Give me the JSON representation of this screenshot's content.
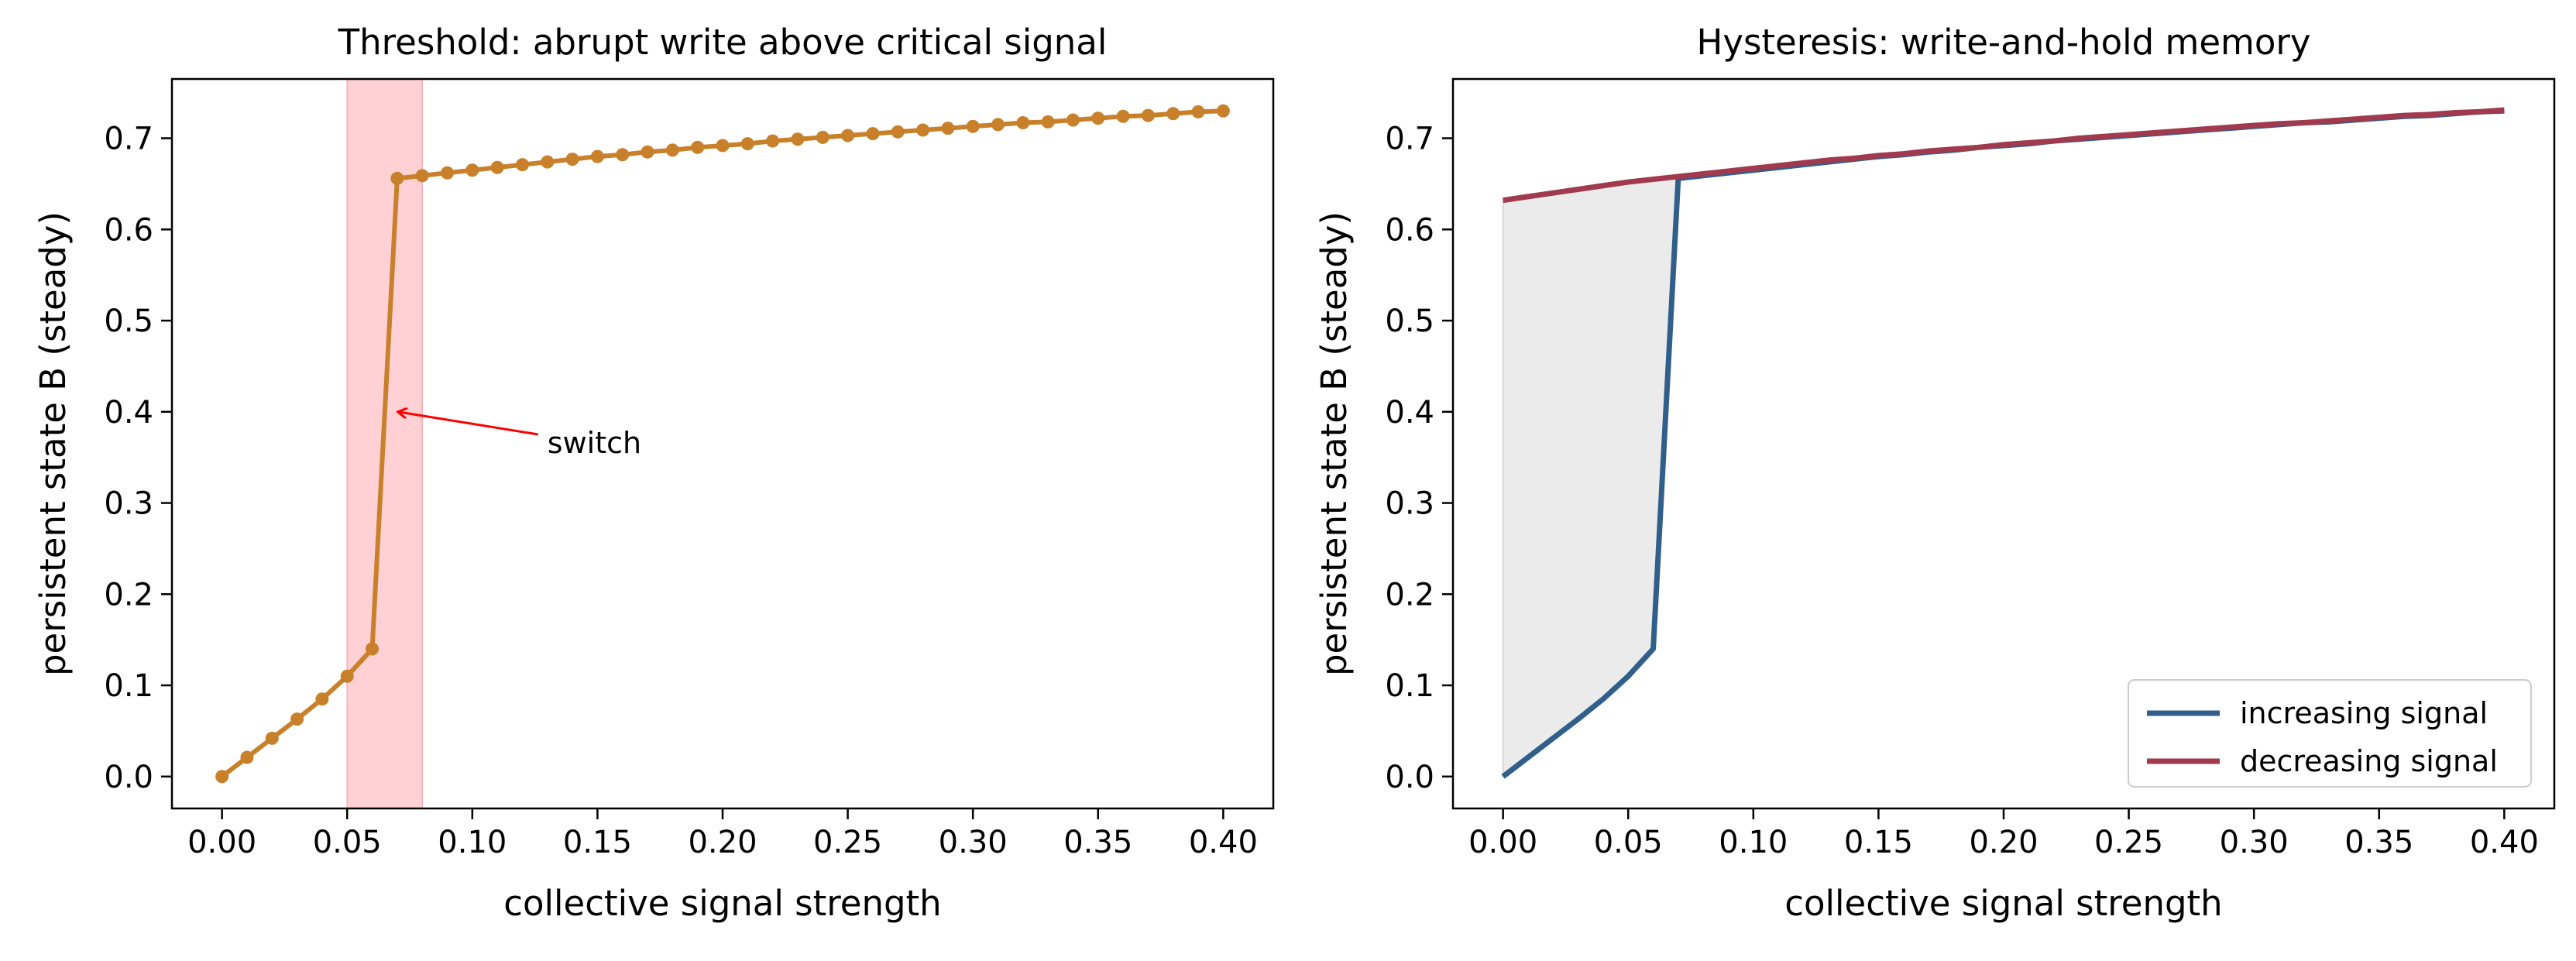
{
  "chart_data": [
    {
      "type": "line",
      "title": "Threshold: abrupt write above critical signal",
      "xlabel": "collective signal strength",
      "ylabel": "persistent state B (steady)",
      "xlim": [
        -0.02,
        0.42
      ],
      "ylim": [
        -0.035,
        0.765
      ],
      "xticks": [
        "0.00",
        "0.05",
        "0.10",
        "0.15",
        "0.20",
        "0.25",
        "0.30",
        "0.35",
        "0.40"
      ],
      "yticks": [
        "0.0",
        "0.1",
        "0.2",
        "0.3",
        "0.4",
        "0.5",
        "0.6",
        "0.7"
      ],
      "grid": false,
      "markers": true,
      "colors": {
        "line": "#c8802a",
        "band": "#ff9aa2",
        "arrow": "#ff0000"
      },
      "highlight_band": [
        0.05,
        0.08
      ],
      "annotation": {
        "text": "switch",
        "point": [
          0.069,
          0.4
        ],
        "text_pos": [
          0.13,
          0.365
        ]
      },
      "series": [
        {
          "x": [
            0.0,
            0.01,
            0.02,
            0.03,
            0.04,
            0.05,
            0.06,
            0.07,
            0.08,
            0.09,
            0.1,
            0.11,
            0.12,
            0.13,
            0.14,
            0.15,
            0.16,
            0.17,
            0.18,
            0.19,
            0.2,
            0.21,
            0.22,
            0.23,
            0.24,
            0.25,
            0.26,
            0.27,
            0.28,
            0.29,
            0.3,
            0.31,
            0.32,
            0.33,
            0.34,
            0.35,
            0.36,
            0.37,
            0.38,
            0.39,
            0.4
          ],
          "y": [
            0.0,
            0.021,
            0.042,
            0.063,
            0.085,
            0.11,
            0.14,
            0.656,
            0.659,
            0.662,
            0.665,
            0.668,
            0.671,
            0.674,
            0.677,
            0.68,
            0.682,
            0.685,
            0.687,
            0.69,
            0.692,
            0.694,
            0.697,
            0.699,
            0.701,
            0.703,
            0.705,
            0.707,
            0.709,
            0.711,
            0.713,
            0.715,
            0.717,
            0.718,
            0.72,
            0.722,
            0.724,
            0.725,
            0.727,
            0.729,
            0.73
          ]
        }
      ]
    },
    {
      "type": "line",
      "title": "Hysteresis: write-and-hold memory",
      "xlabel": "collective signal strength",
      "ylabel": "persistent state B (steady)",
      "xlim": [
        -0.02,
        0.42
      ],
      "ylim": [
        -0.035,
        0.765
      ],
      "xticks": [
        "0.00",
        "0.05",
        "0.10",
        "0.15",
        "0.20",
        "0.25",
        "0.30",
        "0.35",
        "0.40"
      ],
      "yticks": [
        "0.0",
        "0.1",
        "0.2",
        "0.3",
        "0.4",
        "0.5",
        "0.6",
        "0.7"
      ],
      "grid": false,
      "legend_position": "lower-right",
      "colors": {
        "fill": "#ebebeb"
      },
      "series": [
        {
          "name": "increasing signal",
          "color": "#2f5f8a",
          "x": [
            0.0,
            0.01,
            0.02,
            0.03,
            0.04,
            0.05,
            0.06,
            0.07,
            0.08,
            0.09,
            0.1,
            0.11,
            0.12,
            0.13,
            0.14,
            0.15,
            0.16,
            0.17,
            0.18,
            0.19,
            0.2,
            0.21,
            0.22,
            0.23,
            0.24,
            0.25,
            0.26,
            0.27,
            0.28,
            0.29,
            0.3,
            0.31,
            0.32,
            0.33,
            0.34,
            0.35,
            0.36,
            0.37,
            0.38,
            0.39,
            0.4
          ],
          "y": [
            0.0,
            0.021,
            0.042,
            0.063,
            0.085,
            0.11,
            0.14,
            0.656,
            0.659,
            0.662,
            0.665,
            0.668,
            0.671,
            0.674,
            0.677,
            0.68,
            0.682,
            0.685,
            0.687,
            0.69,
            0.692,
            0.694,
            0.697,
            0.699,
            0.701,
            0.703,
            0.705,
            0.707,
            0.709,
            0.711,
            0.713,
            0.715,
            0.717,
            0.718,
            0.72,
            0.722,
            0.724,
            0.725,
            0.727,
            0.729,
            0.73
          ]
        },
        {
          "name": "decreasing signal",
          "color": "#a13a4e",
          "x": [
            0.0,
            0.01,
            0.02,
            0.03,
            0.04,
            0.05,
            0.06,
            0.07,
            0.08,
            0.09,
            0.1,
            0.11,
            0.12,
            0.13,
            0.14,
            0.15,
            0.16,
            0.17,
            0.18,
            0.19,
            0.2,
            0.21,
            0.22,
            0.23,
            0.24,
            0.25,
            0.26,
            0.27,
            0.28,
            0.29,
            0.3,
            0.31,
            0.32,
            0.33,
            0.34,
            0.35,
            0.36,
            0.37,
            0.38,
            0.39,
            0.4
          ],
          "y": [
            0.632,
            0.636,
            0.64,
            0.644,
            0.648,
            0.652,
            0.655,
            0.658,
            0.661,
            0.664,
            0.667,
            0.67,
            0.673,
            0.676,
            0.678,
            0.681,
            0.683,
            0.686,
            0.688,
            0.69,
            0.693,
            0.695,
            0.697,
            0.7,
            0.702,
            0.704,
            0.706,
            0.708,
            0.71,
            0.712,
            0.714,
            0.716,
            0.717,
            0.719,
            0.721,
            0.723,
            0.725,
            0.726,
            0.728,
            0.729,
            0.731
          ]
        }
      ]
    }
  ]
}
